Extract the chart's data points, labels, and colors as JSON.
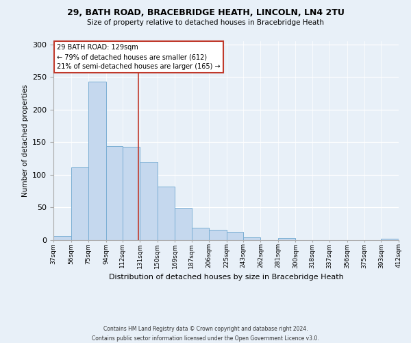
{
  "title1": "29, BATH ROAD, BRACEBRIDGE HEATH, LINCOLN, LN4 2TU",
  "title2": "Size of property relative to detached houses in Bracebridge Heath",
  "xlabel": "Distribution of detached houses by size in Bracebridge Heath",
  "ylabel": "Number of detached properties",
  "footer1": "Contains HM Land Registry data © Crown copyright and database right 2024.",
  "footer2": "Contains public sector information licensed under the Open Government Licence v3.0.",
  "annotation_line1": "29 BATH ROAD: 129sqm",
  "annotation_line2": "← 79% of detached houses are smaller (612)",
  "annotation_line3": "21% of semi-detached houses are larger (165) →",
  "property_size": 129,
  "bin_edges": [
    37,
    56,
    75,
    94,
    112,
    131,
    150,
    169,
    187,
    206,
    225,
    243,
    262,
    281,
    300,
    318,
    337,
    356,
    375,
    393,
    412
  ],
  "bar_values": [
    6,
    111,
    243,
    144,
    143,
    120,
    82,
    49,
    19,
    16,
    13,
    4,
    0,
    3,
    0,
    0,
    0,
    0,
    0,
    2
  ],
  "bar_color": "#c5d8ee",
  "bar_edge_color": "#7bafd4",
  "vline_color": "#c0392b",
  "vline_x": 129,
  "annotation_box_color": "#ffffff",
  "annotation_box_edge": "#c0392b",
  "background_color": "#e8f0f8",
  "ylim": [
    0,
    305
  ],
  "yticks": [
    0,
    50,
    100,
    150,
    200,
    250,
    300
  ],
  "figsize": [
    6.0,
    5.0
  ],
  "dpi": 100
}
